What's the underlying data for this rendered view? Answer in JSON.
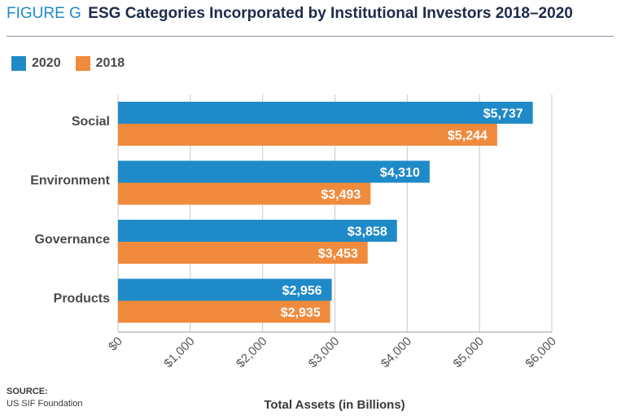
{
  "header": {
    "figure_label": "FIGURE G",
    "title": "ESG Categories Incorporated by Institutional Investors 2018–2020"
  },
  "source": {
    "label": "SOURCE:",
    "text": "US SIF Foundation"
  },
  "colors": {
    "series_2020": "#1f8ac8",
    "series_2018": "#f08a3c",
    "grid": "#c8c8c8",
    "axis_text": "#555555",
    "category_text": "#4a4a4a"
  },
  "chart_data": {
    "type": "bar",
    "orientation": "horizontal",
    "title": "ESG Categories Incorporated by Institutional Investors 2018–2020",
    "xlabel": "Total Assets (in Billions)",
    "ylabel": "",
    "categories": [
      "Social",
      "Environment",
      "Governance",
      "Products"
    ],
    "series": [
      {
        "name": "2020",
        "values": [
          5737,
          4310,
          3858,
          2956
        ],
        "labels": [
          "$5,737",
          "$4,310",
          "$3,858",
          "$2,956"
        ]
      },
      {
        "name": "2018",
        "values": [
          5244,
          3493,
          3453,
          2935
        ],
        "labels": [
          "$5,244",
          "$3,493",
          "$3,453",
          "$2,935"
        ]
      }
    ],
    "xlim": [
      0,
      6000
    ],
    "xticks": [
      0,
      1000,
      2000,
      3000,
      4000,
      5000,
      6000
    ],
    "xtick_labels": [
      "$0",
      "$1,000",
      "$2,000",
      "$3,000",
      "$4,000",
      "$5,000",
      "$6,000"
    ],
    "grid": true,
    "legend_position": "top-left"
  }
}
